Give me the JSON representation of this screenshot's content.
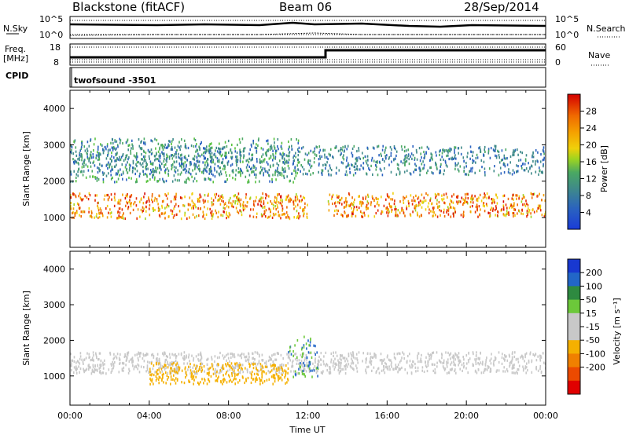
{
  "header": {
    "station": "Blackstone (fitACF)",
    "beam": "Beam 06",
    "date": "28/Sep/2014"
  },
  "panels": {
    "noise": {
      "left_label": "N.Sky",
      "right_label": "N.Search",
      "left_ticks": [
        "10^5",
        "10^0"
      ],
      "right_ticks": [
        "10^5",
        "10^0"
      ]
    },
    "freq": {
      "left_label_1": "Freq.",
      "left_label_2": "[MHz]",
      "left_ticks": [
        "18",
        "8"
      ],
      "right_label": "Nave",
      "right_ticks": [
        "60",
        "0"
      ]
    },
    "cpid": {
      "label": "CPID",
      "value": "twofsound  -3501"
    }
  },
  "chart_data": [
    {
      "type": "heatmap",
      "title": "",
      "ylabel": "Slant Range [km]",
      "xlabel": "",
      "ylim": [
        180,
        4500
      ],
      "yticks": [
        1000,
        2000,
        3000,
        4000
      ],
      "colorbar": {
        "label": "Power [dB]",
        "ticks": [
          4,
          8,
          12,
          16,
          20,
          24,
          28
        ],
        "colors": [
          "#1a3cd8",
          "#2a62c0",
          "#3f8a8a",
          "#4aa862",
          "#58c23e",
          "#9ed420",
          "#f0d00a",
          "#f5a000",
          "#f06a00",
          "#e52a00",
          "#d40000"
        ]
      },
      "features": [
        {
          "start": "00:00",
          "end": "12:00",
          "range_km": [
            1000,
            1700
          ],
          "level_dB": [
            16,
            28
          ]
        },
        {
          "start": "13:00",
          "end": "24:00",
          "range_km": [
            1050,
            1700
          ],
          "level_dB": [
            16,
            28
          ]
        },
        {
          "start": "00:00",
          "end": "11:30",
          "range_km": [
            2000,
            3200
          ],
          "level_dB": [
            4,
            14
          ]
        },
        {
          "start": "00:00",
          "end": "24:00",
          "range_km": [
            2200,
            3000
          ],
          "level_dB": [
            4,
            10
          ]
        }
      ]
    },
    {
      "type": "heatmap",
      "title": "",
      "ylabel": "Slant Range [km]",
      "xlabel": "Time UT",
      "xticks": [
        "00:00",
        "04:00",
        "08:00",
        "12:00",
        "16:00",
        "20:00",
        "00:00"
      ],
      "ylim": [
        180,
        4500
      ],
      "yticks": [
        1000,
        2000,
        3000,
        4000
      ],
      "colorbar": {
        "label": "Velocity [m s⁻¹]",
        "ticks": [
          200,
          100,
          50,
          15,
          -15,
          -50,
          -100,
          -200
        ],
        "colors": [
          "#1838d0",
          "#2266c8",
          "#2e8a40",
          "#6cc83a",
          "#c8c8c8",
          "#c8c8c8",
          "#f5b000",
          "#f08000",
          "#ec4a00",
          "#e00000"
        ]
      },
      "features": [
        {
          "start": "00:00",
          "end": "24:00",
          "range_km": [
            1100,
            1700
          ],
          "velocity": [
            -15,
            15
          ]
        },
        {
          "start": "04:00",
          "end": "11:00",
          "range_km": [
            800,
            1400
          ],
          "velocity": [
            -100,
            -50
          ]
        },
        {
          "start": "11:00",
          "end": "12:30",
          "range_km": [
            1000,
            2200
          ],
          "velocity": [
            15,
            100
          ]
        }
      ]
    }
  ]
}
